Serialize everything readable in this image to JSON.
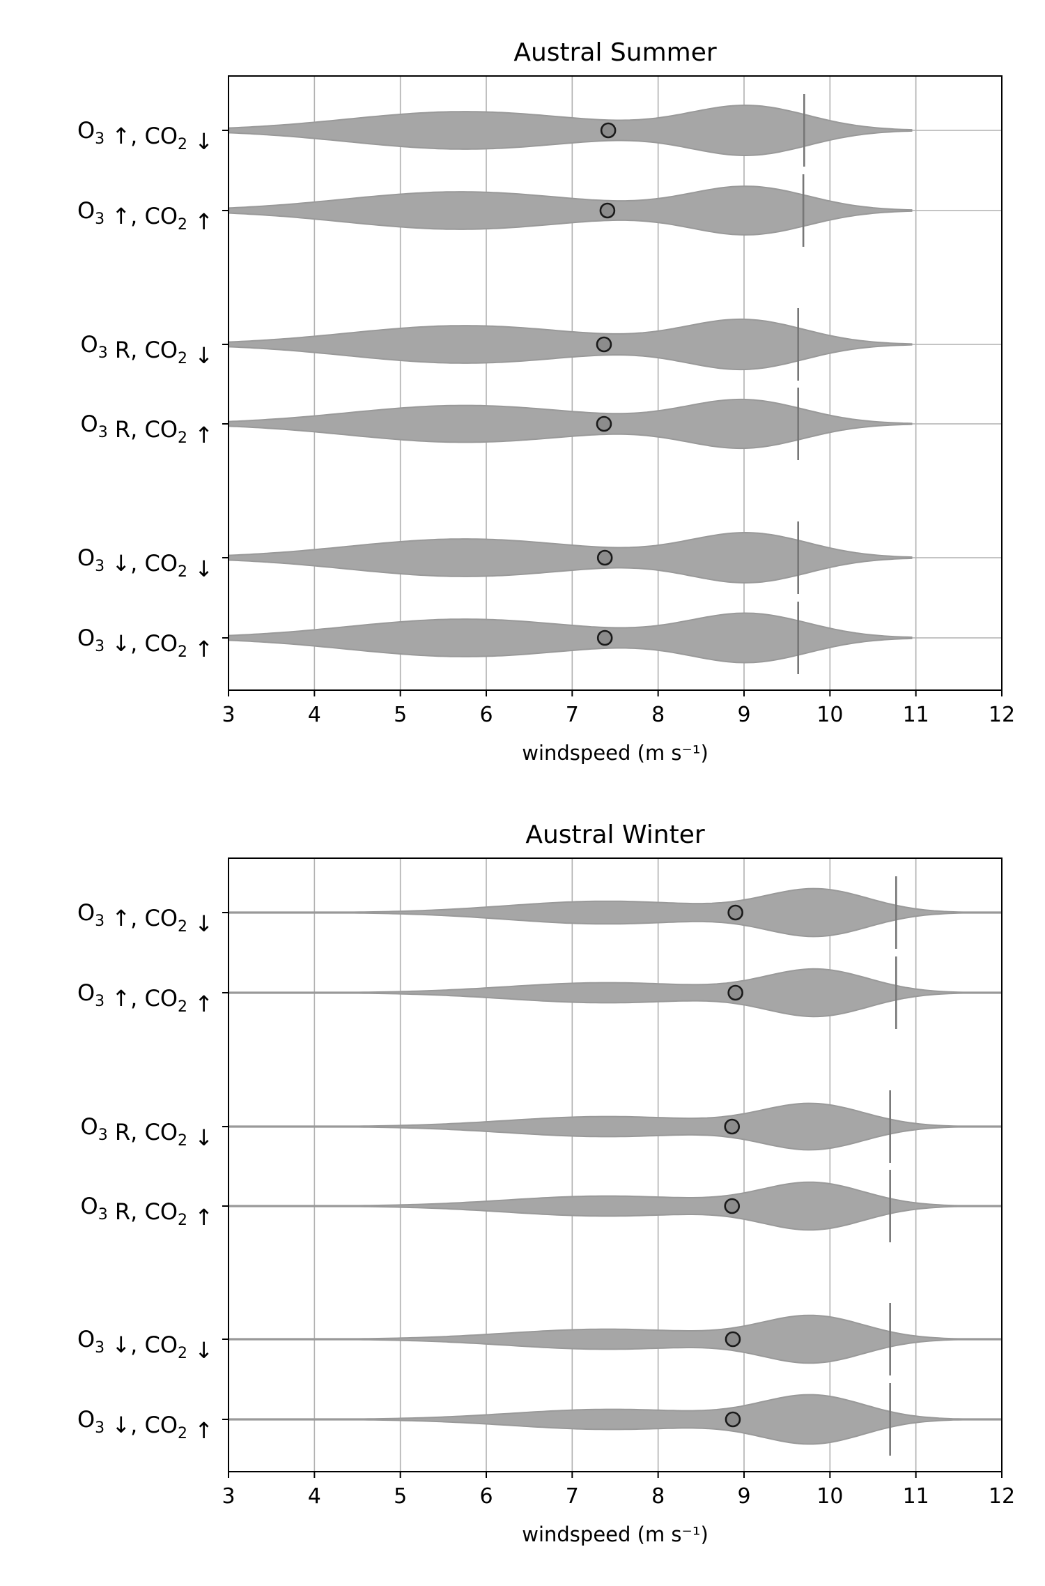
{
  "colors": {
    "violin_fill": "#a6a6a6",
    "violin_edge": "#999999",
    "mean_marker": "#8c8c8c",
    "marker_edge": "#1a1a1a",
    "percentile_line": "#777777",
    "grid": "#b0b0b0"
  },
  "chart_data": [
    {
      "type": "violin",
      "orientation": "horizontal",
      "title": "Austral Summer",
      "xlabel": "windspeed (m s⁻¹)",
      "xlim": [
        3,
        12
      ],
      "xticks": [
        3,
        4,
        5,
        6,
        7,
        8,
        9,
        10,
        11,
        12
      ],
      "grid": true,
      "categories": [
        {
          "label": "O₃ ↑, CO₂ ↓",
          "base": "O",
          "sub": "3",
          "mid": " ↑, CO",
          "sub2": "2",
          "end": " ↓"
        },
        {
          "label": "O₃ ↑, CO₂ ↑",
          "base": "O",
          "sub": "3",
          "mid": " ↑, CO",
          "sub2": "2",
          "end": " ↑"
        },
        {
          "label": "O₃ R, CO₂ ↓",
          "base": "O",
          "sub": "3",
          "mid": " R, CO",
          "sub2": "2",
          "end": " ↓"
        },
        {
          "label": "O₃ R, CO₂ ↑",
          "base": "O",
          "sub": "3",
          "mid": " R, CO",
          "sub2": "2",
          "end": " ↑"
        },
        {
          "label": "O₃ ↓, CO₂ ↓",
          "base": "O",
          "sub": "3",
          "mid": " ↓, CO",
          "sub2": "2",
          "end": " ↓"
        },
        {
          "label": "O₃ ↓, CO₂ ↑",
          "base": "O",
          "sub": "3",
          "mid": " ↓, CO",
          "sub2": "2",
          "end": " ↑"
        }
      ],
      "series": [
        {
          "mean": 7.42,
          "p95": 9.7,
          "extent": [
            3.0,
            10.95
          ],
          "peaks": [
            {
              "x": 5.75,
              "h": 0.56,
              "w": 1.35
            },
            {
              "x": 9.05,
              "h": 0.72,
              "w": 0.7
            }
          ]
        },
        {
          "mean": 7.41,
          "p95": 9.69,
          "extent": [
            3.0,
            10.95
          ],
          "peaks": [
            {
              "x": 5.7,
              "h": 0.56,
              "w": 1.35
            },
            {
              "x": 9.05,
              "h": 0.7,
              "w": 0.7
            }
          ]
        },
        {
          "mean": 7.37,
          "p95": 9.63,
          "extent": [
            3.0,
            10.95
          ],
          "peaks": [
            {
              "x": 5.75,
              "h": 0.56,
              "w": 1.35
            },
            {
              "x": 9.0,
              "h": 0.72,
              "w": 0.7
            }
          ]
        },
        {
          "mean": 7.37,
          "p95": 9.63,
          "extent": [
            3.0,
            10.95
          ],
          "peaks": [
            {
              "x": 5.75,
              "h": 0.55,
              "w": 1.35
            },
            {
              "x": 9.0,
              "h": 0.7,
              "w": 0.7
            }
          ]
        },
        {
          "mean": 7.38,
          "p95": 9.63,
          "extent": [
            3.0,
            10.95
          ],
          "peaks": [
            {
              "x": 5.75,
              "h": 0.56,
              "w": 1.35
            },
            {
              "x": 9.05,
              "h": 0.72,
              "w": 0.7
            }
          ]
        },
        {
          "mean": 7.38,
          "p95": 9.63,
          "extent": [
            3.0,
            10.95
          ],
          "peaks": [
            {
              "x": 5.75,
              "h": 0.56,
              "w": 1.35
            },
            {
              "x": 9.05,
              "h": 0.71,
              "w": 0.7
            }
          ]
        }
      ]
    },
    {
      "type": "violin",
      "orientation": "horizontal",
      "title": "Austral Winter",
      "xlabel": "windspeed (m s⁻¹)",
      "xlim": [
        3,
        12
      ],
      "xticks": [
        3,
        4,
        5,
        6,
        7,
        8,
        9,
        10,
        11,
        12
      ],
      "grid": true,
      "categories": [
        {
          "label": "O₃ ↑, CO₂ ↓",
          "base": "O",
          "sub": "3",
          "mid": " ↑, CO",
          "sub2": "2",
          "end": " ↓"
        },
        {
          "label": "O₃ ↑, CO₂ ↑",
          "base": "O",
          "sub": "3",
          "mid": " ↑, CO",
          "sub2": "2",
          "end": " ↑"
        },
        {
          "label": "O₃ R, CO₂ ↓",
          "base": "O",
          "sub": "3",
          "mid": " R, CO",
          "sub2": "2",
          "end": " ↓"
        },
        {
          "label": "O₃ R, CO₂ ↑",
          "base": "O",
          "sub": "3",
          "mid": " R, CO",
          "sub2": "2",
          "end": " ↑"
        },
        {
          "label": "O₃ ↓, CO₂ ↓",
          "base": "O",
          "sub": "3",
          "mid": " ↓, CO",
          "sub2": "2",
          "end": " ↓"
        },
        {
          "label": "O₃ ↓, CO₂ ↑",
          "base": "O",
          "sub": "3",
          "mid": " ↓, CO",
          "sub2": "2",
          "end": " ↑"
        }
      ],
      "series": [
        {
          "mean": 8.9,
          "p95": 10.77,
          "extent": [
            3.0,
            12.0
          ],
          "peaks": [
            {
              "x": 7.4,
              "h": 0.34,
              "w": 1.15
            },
            {
              "x": 9.85,
              "h": 0.68,
              "w": 0.6
            }
          ]
        },
        {
          "mean": 8.9,
          "p95": 10.77,
          "extent": [
            3.0,
            12.0
          ],
          "peaks": [
            {
              "x": 7.4,
              "h": 0.3,
              "w": 1.15
            },
            {
              "x": 9.85,
              "h": 0.68,
              "w": 0.6
            }
          ]
        },
        {
          "mean": 8.86,
          "p95": 10.7,
          "extent": [
            3.0,
            12.0
          ],
          "peaks": [
            {
              "x": 7.4,
              "h": 0.3,
              "w": 1.15
            },
            {
              "x": 9.8,
              "h": 0.66,
              "w": 0.6
            }
          ]
        },
        {
          "mean": 8.86,
          "p95": 10.7,
          "extent": [
            3.0,
            12.0
          ],
          "peaks": [
            {
              "x": 7.4,
              "h": 0.3,
              "w": 1.15
            },
            {
              "x": 9.8,
              "h": 0.68,
              "w": 0.6
            }
          ]
        },
        {
          "mean": 8.87,
          "p95": 10.7,
          "extent": [
            3.0,
            12.0
          ],
          "peaks": [
            {
              "x": 7.4,
              "h": 0.3,
              "w": 1.15
            },
            {
              "x": 9.8,
              "h": 0.68,
              "w": 0.6
            }
          ]
        },
        {
          "mean": 8.87,
          "p95": 10.7,
          "extent": [
            3.0,
            12.0
          ],
          "peaks": [
            {
              "x": 7.45,
              "h": 0.3,
              "w": 1.15
            },
            {
              "x": 9.8,
              "h": 0.7,
              "w": 0.6
            }
          ]
        }
      ]
    }
  ]
}
